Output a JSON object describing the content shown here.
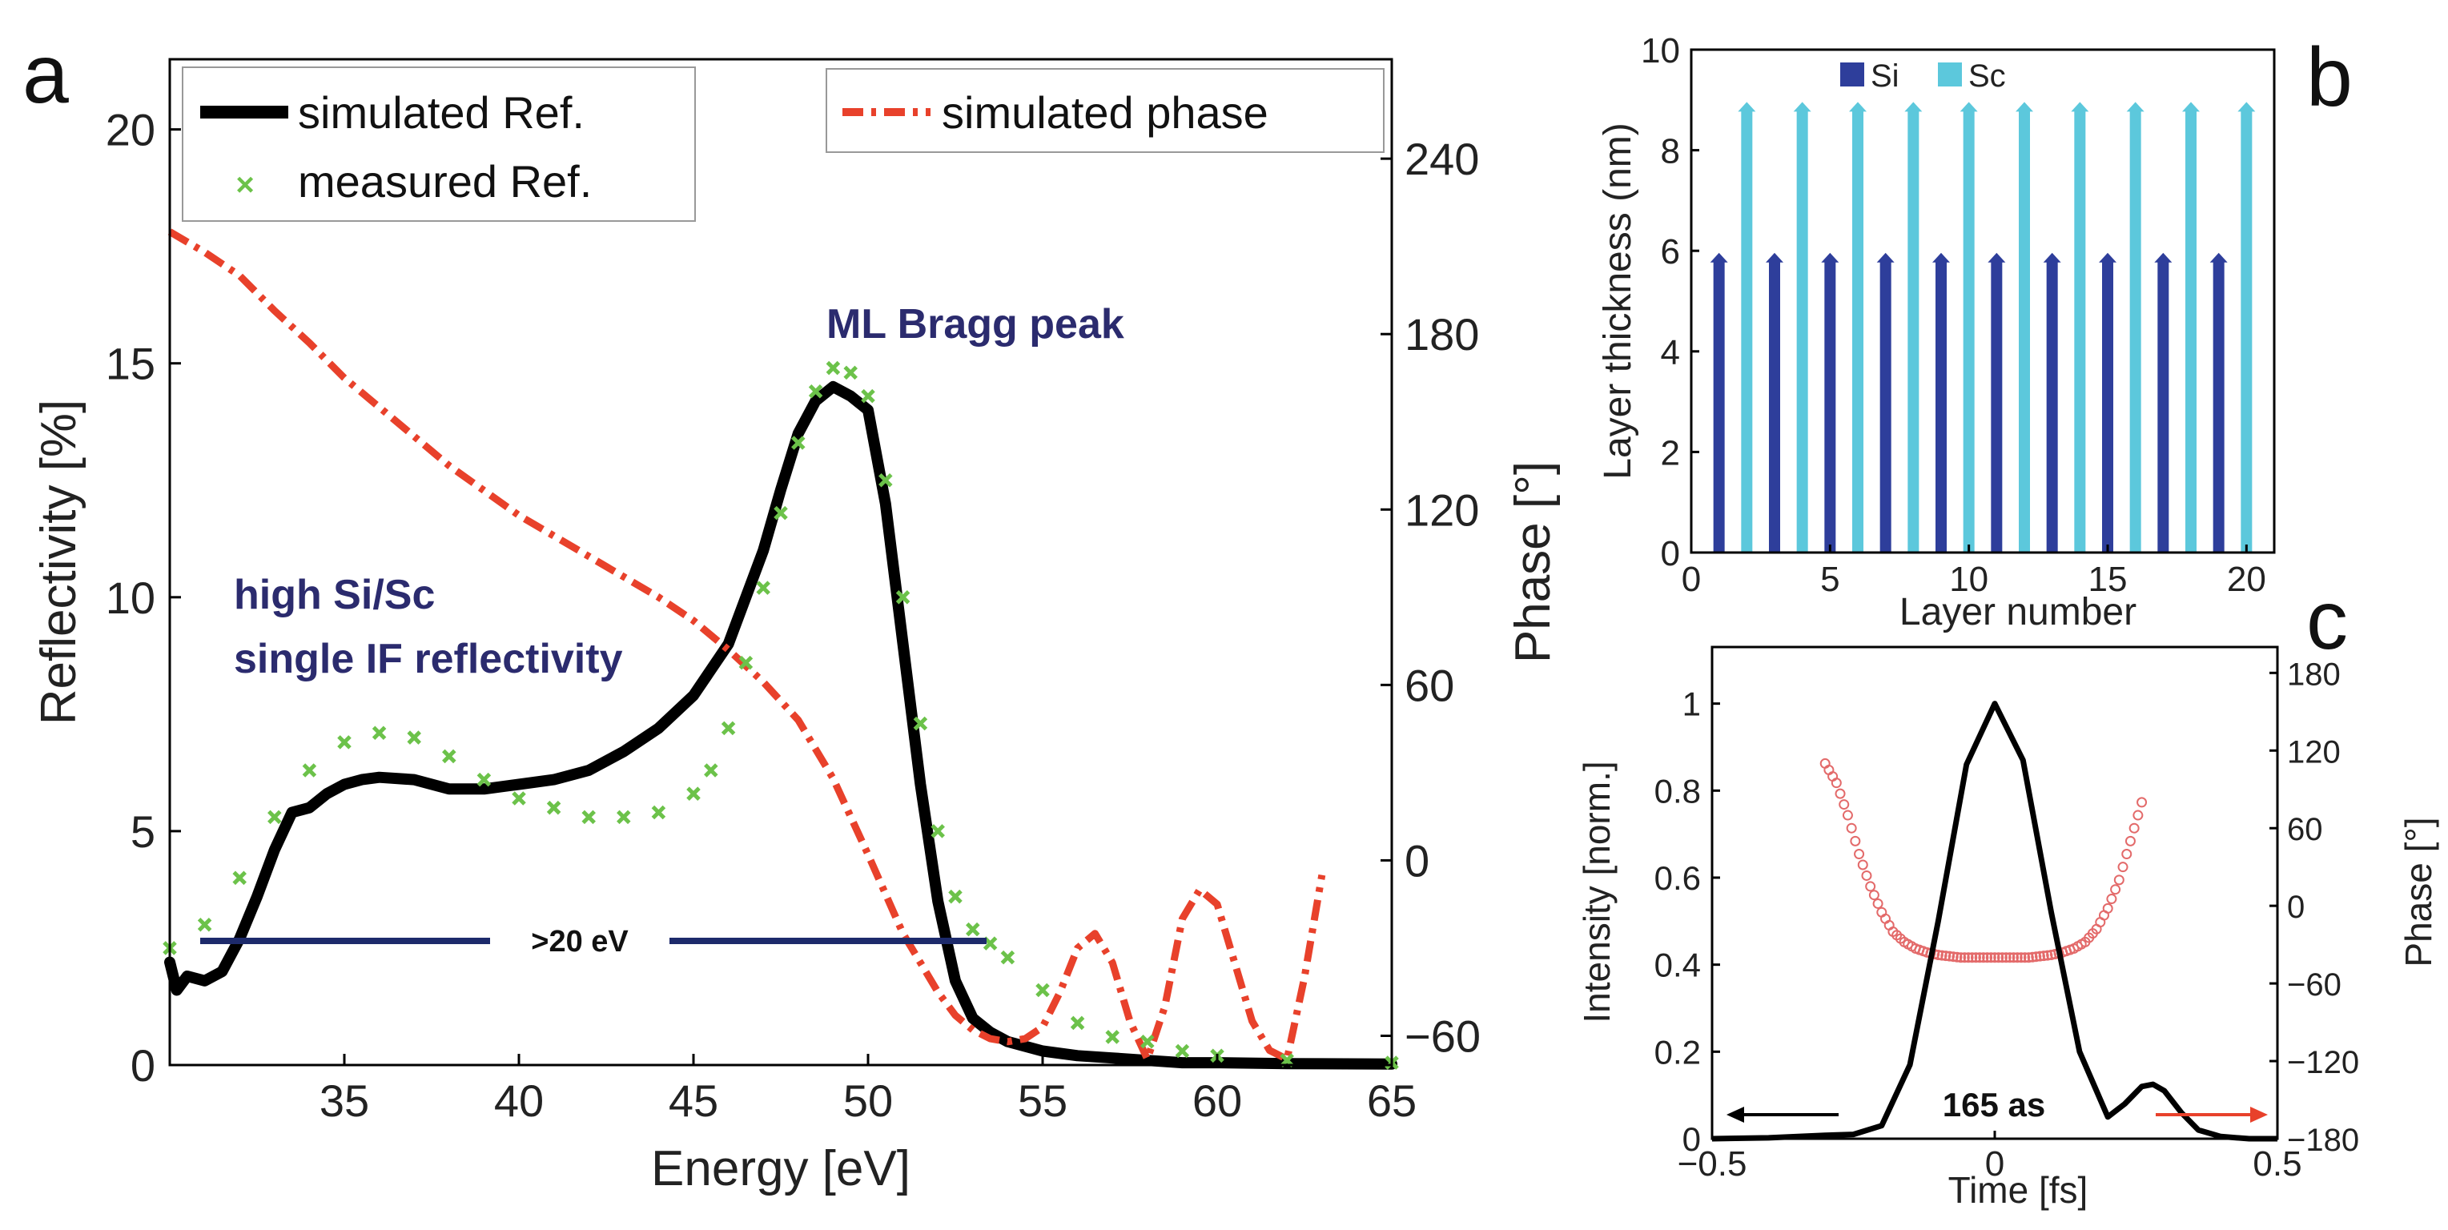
{
  "chart_data": [
    {
      "panel": "a",
      "type": "line",
      "xlabel": "Energy [eV]",
      "ylabel": "Reflectivity [%]",
      "y2label": "Phase [°]",
      "xlim": [
        30,
        65
      ],
      "ylim": [
        0,
        21.5
      ],
      "y2lim": [
        -70,
        274
      ],
      "xticks": [
        35,
        40,
        45,
        50,
        55,
        60,
        65
      ],
      "yticks": [
        0,
        5,
        10,
        15,
        20
      ],
      "y2ticks": [
        -60,
        0,
        60,
        120,
        180,
        240
      ],
      "legend_left": [
        "simulated Ref.",
        "measured Ref."
      ],
      "legend_right": [
        "simulated phase"
      ],
      "annotations": {
        "bragg": "ML Bragg peak",
        "if_line1": "high Si/Sc",
        "if_line2": "single IF reflectivity",
        "bandwidth": ">20 eV"
      },
      "series": [
        {
          "name": "simulated Ref.",
          "color": "#000000",
          "x": [
            30.0,
            30.2,
            30.5,
            31.0,
            31.5,
            32.0,
            32.5,
            33.0,
            33.5,
            34.0,
            34.5,
            35.0,
            35.5,
            36.0,
            37.0,
            38.0,
            39.0,
            40.0,
            41.0,
            42.0,
            43.0,
            44.0,
            45.0,
            46.0,
            47.0,
            47.5,
            48.0,
            48.5,
            49.0,
            49.5,
            50.0,
            50.5,
            51.0,
            51.5,
            52.0,
            52.5,
            53.0,
            53.5,
            54.0,
            55.0,
            56.0,
            57.0,
            58.0,
            59.0,
            60.0,
            62.0,
            65.0
          ],
          "values": [
            2.2,
            1.6,
            1.9,
            1.8,
            2.0,
            2.7,
            3.6,
            4.6,
            5.4,
            5.5,
            5.8,
            6.0,
            6.1,
            6.15,
            6.1,
            5.9,
            5.9,
            6.0,
            6.1,
            6.3,
            6.7,
            7.2,
            7.9,
            9.0,
            11.0,
            12.3,
            13.5,
            14.2,
            14.5,
            14.3,
            14.0,
            12.0,
            9.0,
            6.0,
            3.5,
            1.8,
            1.0,
            0.7,
            0.5,
            0.3,
            0.2,
            0.15,
            0.1,
            0.05,
            0.05,
            0.03,
            0.02
          ]
        },
        {
          "name": "measured Ref.",
          "color": "#6cc24a",
          "x": [
            30.0,
            31.0,
            32.0,
            33.0,
            34.0,
            35.0,
            36.0,
            37.0,
            38.0,
            39.0,
            40.0,
            41.0,
            42.0,
            43.0,
            44.0,
            45.0,
            45.5,
            46.0,
            46.5,
            47.0,
            47.5,
            48.0,
            48.5,
            49.0,
            49.5,
            50.0,
            50.5,
            51.0,
            51.5,
            52.0,
            52.5,
            53.0,
            53.5,
            54.0,
            55.0,
            56.0,
            57.0,
            58.0,
            59.0,
            60.0,
            62.0,
            65.0
          ],
          "values": [
            2.5,
            3.0,
            4.0,
            5.3,
            6.3,
            6.9,
            7.1,
            7.0,
            6.6,
            6.1,
            5.7,
            5.5,
            5.3,
            5.3,
            5.4,
            5.8,
            6.3,
            7.2,
            8.6,
            10.2,
            11.8,
            13.3,
            14.4,
            14.9,
            14.8,
            14.3,
            12.5,
            10.0,
            7.3,
            5.0,
            3.6,
            2.9,
            2.6,
            2.3,
            1.6,
            0.9,
            0.6,
            0.5,
            0.3,
            0.2,
            0.1,
            0.05
          ]
        },
        {
          "name": "simulated phase",
          "color": "#e8412b",
          "x": [
            30.0,
            31.0,
            32.0,
            33.0,
            34.0,
            35.0,
            36.0,
            38.0,
            40.0,
            42.0,
            44.0,
            45.0,
            46.0,
            47.0,
            48.0,
            49.0,
            50.0,
            51.0,
            52.0,
            52.5,
            53.0,
            53.5,
            54.0,
            54.5,
            55.0,
            55.5,
            56.0,
            56.5,
            57.0,
            57.5,
            58.0,
            58.5,
            59.0,
            59.5,
            60.0,
            60.5,
            61.0,
            61.5,
            62.0,
            62.5,
            63.0
          ],
          "values": [
            215,
            208,
            200,
            188,
            177,
            165,
            155,
            135,
            118,
            104,
            90,
            82,
            72,
            61,
            48,
            28,
            2,
            -25,
            -45,
            -53,
            -58,
            -61,
            -62,
            -61,
            -57,
            -45,
            -30,
            -25,
            -35,
            -55,
            -68,
            -50,
            -20,
            -10,
            -15,
            -35,
            -55,
            -65,
            -68,
            -40,
            -5
          ]
        }
      ]
    },
    {
      "panel": "b",
      "type": "bar",
      "xlabel": "Layer number",
      "ylabel": "Layer thickness (nm)",
      "xlim": [
        0,
        21
      ],
      "ylim": [
        0,
        10
      ],
      "xticks": [
        0,
        5,
        10,
        15,
        20
      ],
      "yticks": [
        0,
        2,
        4,
        6,
        8,
        10
      ],
      "legend": [
        "Si",
        "Sc"
      ],
      "series": [
        {
          "name": "Si",
          "color": "#2e3e9b",
          "x": [
            1,
            3,
            5,
            7,
            9,
            11,
            13,
            15,
            17,
            19
          ],
          "values": [
            5.8,
            5.8,
            5.8,
            5.8,
            5.8,
            5.8,
            5.8,
            5.8,
            5.8,
            5.8
          ]
        },
        {
          "name": "Sc",
          "color": "#5cc8dc",
          "x": [
            2,
            4,
            6,
            8,
            10,
            12,
            14,
            16,
            18,
            20
          ],
          "values": [
            8.8,
            8.8,
            8.8,
            8.8,
            8.8,
            8.8,
            8.8,
            8.8,
            8.8,
            8.8
          ]
        }
      ]
    },
    {
      "panel": "c",
      "type": "line",
      "xlabel": "Time [fs]",
      "ylabel": "Intensity [norm.]",
      "y2label": "Phase [°]",
      "xlim": [
        -0.5,
        0.5
      ],
      "ylim": [
        0,
        1.13
      ],
      "y2lim": [
        -180,
        200
      ],
      "xticks": [
        -0.5,
        0,
        0.5
      ],
      "yticks": [
        0,
        0.2,
        0.4,
        0.6,
        0.8,
        1
      ],
      "y2ticks": [
        -180,
        -120,
        -60,
        0,
        60,
        120,
        180
      ],
      "annotation": "165 as",
      "series": [
        {
          "name": "Intensity",
          "color": "#000000",
          "x": [
            -0.5,
            -0.4,
            -0.3,
            -0.25,
            -0.2,
            -0.15,
            -0.1,
            -0.05,
            0.0,
            0.05,
            0.1,
            0.15,
            0.2,
            0.23,
            0.26,
            0.28,
            0.3,
            0.33,
            0.36,
            0.4,
            0.45,
            0.5
          ],
          "values": [
            0.0,
            0.002,
            0.008,
            0.01,
            0.03,
            0.17,
            0.5,
            0.86,
            1.0,
            0.87,
            0.52,
            0.2,
            0.05,
            0.08,
            0.12,
            0.125,
            0.11,
            0.06,
            0.02,
            0.005,
            0.0,
            0.0
          ]
        },
        {
          "name": "Phase",
          "color": "#e36a6a",
          "x": [
            -0.3,
            -0.28,
            -0.26,
            -0.24,
            -0.22,
            -0.2,
            -0.18,
            -0.16,
            -0.14,
            -0.12,
            -0.1,
            -0.08,
            -0.06,
            -0.04,
            -0.02,
            0.0,
            0.02,
            0.04,
            0.06,
            0.08,
            0.1,
            0.12,
            0.14,
            0.16,
            0.18,
            0.2,
            0.22,
            0.24,
            0.26
          ],
          "values": [
            110,
            95,
            70,
            40,
            15,
            -5,
            -20,
            -28,
            -33,
            -36,
            -38,
            -39,
            -40,
            -40,
            -40,
            -40,
            -40,
            -40,
            -40,
            -39,
            -38,
            -36,
            -33,
            -28,
            -18,
            -2,
            20,
            50,
            80
          ]
        }
      ]
    }
  ]
}
